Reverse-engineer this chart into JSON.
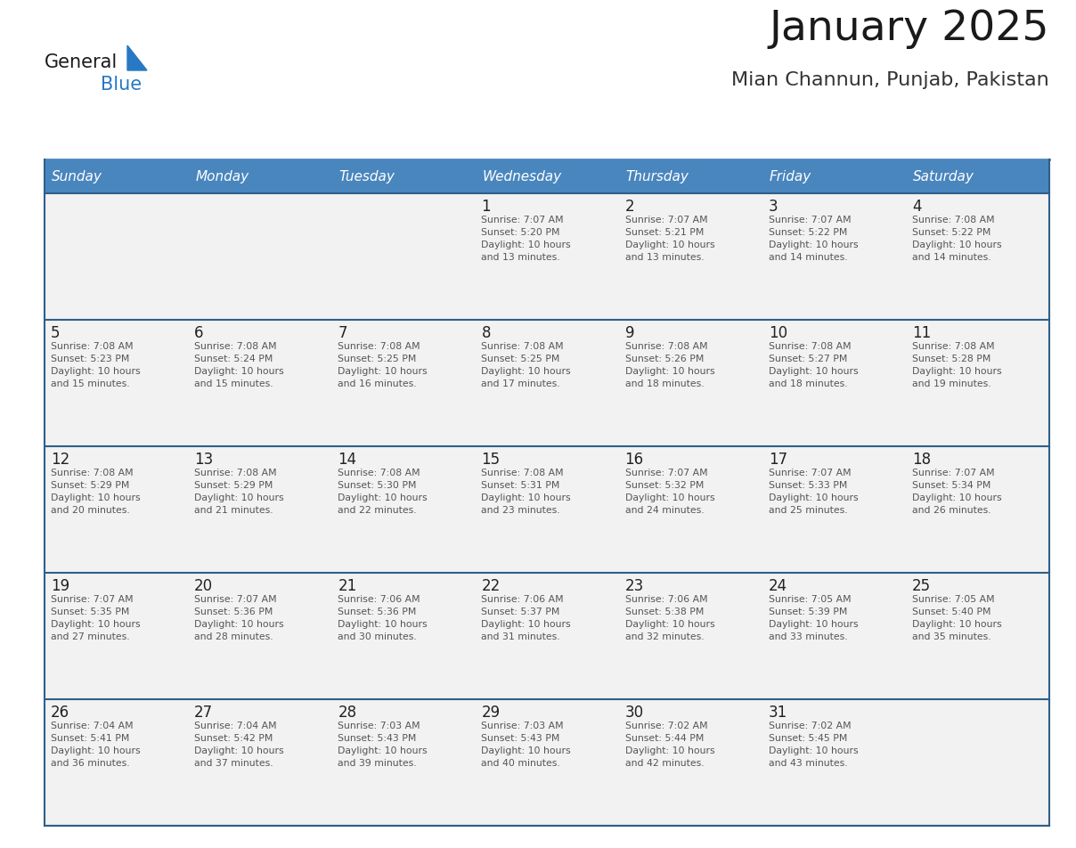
{
  "title": "January 2025",
  "subtitle": "Mian Channun, Punjab, Pakistan",
  "days_of_week": [
    "Sunday",
    "Monday",
    "Tuesday",
    "Wednesday",
    "Thursday",
    "Friday",
    "Saturday"
  ],
  "header_bg": "#4a86be",
  "header_text": "#ffffff",
  "cell_bg": "#f2f2f2",
  "row_sep_color": "#2e5f8a",
  "text_color": "#555555",
  "day_num_color": "#222222",
  "title_color": "#1a1a1a",
  "subtitle_color": "#333333",
  "logo_text_color": "#1a1a1a",
  "logo_blue_color": "#2878c3",
  "fig_width": 11.88,
  "fig_height": 9.18,
  "calendar_data": [
    [
      {
        "day": null,
        "info": ""
      },
      {
        "day": null,
        "info": ""
      },
      {
        "day": null,
        "info": ""
      },
      {
        "day": 1,
        "info": "Sunrise: 7:07 AM\nSunset: 5:20 PM\nDaylight: 10 hours\nand 13 minutes."
      },
      {
        "day": 2,
        "info": "Sunrise: 7:07 AM\nSunset: 5:21 PM\nDaylight: 10 hours\nand 13 minutes."
      },
      {
        "day": 3,
        "info": "Sunrise: 7:07 AM\nSunset: 5:22 PM\nDaylight: 10 hours\nand 14 minutes."
      },
      {
        "day": 4,
        "info": "Sunrise: 7:08 AM\nSunset: 5:22 PM\nDaylight: 10 hours\nand 14 minutes."
      }
    ],
    [
      {
        "day": 5,
        "info": "Sunrise: 7:08 AM\nSunset: 5:23 PM\nDaylight: 10 hours\nand 15 minutes."
      },
      {
        "day": 6,
        "info": "Sunrise: 7:08 AM\nSunset: 5:24 PM\nDaylight: 10 hours\nand 15 minutes."
      },
      {
        "day": 7,
        "info": "Sunrise: 7:08 AM\nSunset: 5:25 PM\nDaylight: 10 hours\nand 16 minutes."
      },
      {
        "day": 8,
        "info": "Sunrise: 7:08 AM\nSunset: 5:25 PM\nDaylight: 10 hours\nand 17 minutes."
      },
      {
        "day": 9,
        "info": "Sunrise: 7:08 AM\nSunset: 5:26 PM\nDaylight: 10 hours\nand 18 minutes."
      },
      {
        "day": 10,
        "info": "Sunrise: 7:08 AM\nSunset: 5:27 PM\nDaylight: 10 hours\nand 18 minutes."
      },
      {
        "day": 11,
        "info": "Sunrise: 7:08 AM\nSunset: 5:28 PM\nDaylight: 10 hours\nand 19 minutes."
      }
    ],
    [
      {
        "day": 12,
        "info": "Sunrise: 7:08 AM\nSunset: 5:29 PM\nDaylight: 10 hours\nand 20 minutes."
      },
      {
        "day": 13,
        "info": "Sunrise: 7:08 AM\nSunset: 5:29 PM\nDaylight: 10 hours\nand 21 minutes."
      },
      {
        "day": 14,
        "info": "Sunrise: 7:08 AM\nSunset: 5:30 PM\nDaylight: 10 hours\nand 22 minutes."
      },
      {
        "day": 15,
        "info": "Sunrise: 7:08 AM\nSunset: 5:31 PM\nDaylight: 10 hours\nand 23 minutes."
      },
      {
        "day": 16,
        "info": "Sunrise: 7:07 AM\nSunset: 5:32 PM\nDaylight: 10 hours\nand 24 minutes."
      },
      {
        "day": 17,
        "info": "Sunrise: 7:07 AM\nSunset: 5:33 PM\nDaylight: 10 hours\nand 25 minutes."
      },
      {
        "day": 18,
        "info": "Sunrise: 7:07 AM\nSunset: 5:34 PM\nDaylight: 10 hours\nand 26 minutes."
      }
    ],
    [
      {
        "day": 19,
        "info": "Sunrise: 7:07 AM\nSunset: 5:35 PM\nDaylight: 10 hours\nand 27 minutes."
      },
      {
        "day": 20,
        "info": "Sunrise: 7:07 AM\nSunset: 5:36 PM\nDaylight: 10 hours\nand 28 minutes."
      },
      {
        "day": 21,
        "info": "Sunrise: 7:06 AM\nSunset: 5:36 PM\nDaylight: 10 hours\nand 30 minutes."
      },
      {
        "day": 22,
        "info": "Sunrise: 7:06 AM\nSunset: 5:37 PM\nDaylight: 10 hours\nand 31 minutes."
      },
      {
        "day": 23,
        "info": "Sunrise: 7:06 AM\nSunset: 5:38 PM\nDaylight: 10 hours\nand 32 minutes."
      },
      {
        "day": 24,
        "info": "Sunrise: 7:05 AM\nSunset: 5:39 PM\nDaylight: 10 hours\nand 33 minutes."
      },
      {
        "day": 25,
        "info": "Sunrise: 7:05 AM\nSunset: 5:40 PM\nDaylight: 10 hours\nand 35 minutes."
      }
    ],
    [
      {
        "day": 26,
        "info": "Sunrise: 7:04 AM\nSunset: 5:41 PM\nDaylight: 10 hours\nand 36 minutes."
      },
      {
        "day": 27,
        "info": "Sunrise: 7:04 AM\nSunset: 5:42 PM\nDaylight: 10 hours\nand 37 minutes."
      },
      {
        "day": 28,
        "info": "Sunrise: 7:03 AM\nSunset: 5:43 PM\nDaylight: 10 hours\nand 39 minutes."
      },
      {
        "day": 29,
        "info": "Sunrise: 7:03 AM\nSunset: 5:43 PM\nDaylight: 10 hours\nand 40 minutes."
      },
      {
        "day": 30,
        "info": "Sunrise: 7:02 AM\nSunset: 5:44 PM\nDaylight: 10 hours\nand 42 minutes."
      },
      {
        "day": 31,
        "info": "Sunrise: 7:02 AM\nSunset: 5:45 PM\nDaylight: 10 hours\nand 43 minutes."
      },
      {
        "day": null,
        "info": ""
      }
    ]
  ]
}
